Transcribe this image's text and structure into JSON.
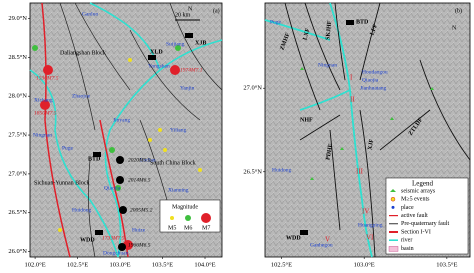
{
  "panel_a": {
    "label": "(a)",
    "scale": "20 km",
    "north": "N",
    "xlim": [
      101.94,
      104.2
    ],
    "ylim": [
      25.93,
      29.2
    ],
    "xticks": [
      {
        "value": 102.0,
        "label": "102.0°E"
      },
      {
        "value": 102.5,
        "label": "102.5°E"
      },
      {
        "value": 103.0,
        "label": "103.0°E"
      },
      {
        "value": 103.5,
        "label": "103.5°E"
      },
      {
        "value": 104.0,
        "label": "104.0°E"
      }
    ],
    "yticks": [
      {
        "value": 26.0,
        "label": "26.0°N"
      },
      {
        "value": 26.5,
        "label": "26.5°N"
      },
      {
        "value": 27.0,
        "label": "27.0°N"
      },
      {
        "value": 27.5,
        "label": "27.5°N"
      },
      {
        "value": 28.0,
        "label": "28.0°N"
      },
      {
        "value": 28.5,
        "label": "28.5°N"
      },
      {
        "value": 29.0,
        "label": "29.0°N"
      }
    ],
    "places": [
      "Ganluo",
      "Zhaojue",
      "Xichang",
      "Puge",
      "Ningnan",
      "Huidong",
      "Qiaojia",
      "Ludian",
      "Jinyang",
      "Yongshan",
      "Suijiang",
      "Yanjin",
      "Yiliang",
      "Xianning",
      "Huize",
      "Dongchuan"
    ],
    "stations": [
      "XJB",
      "XLD",
      "BTD",
      "WDD"
    ],
    "blocks": [
      "Daliangshan Block",
      "South China Block",
      "Sichuan-Yunnan Block"
    ],
    "events": [
      "1536M7.5",
      "1850M7.5",
      "1974M7.1",
      "2020M5.0",
      "2014M6.5",
      "2005M5.2",
      "1733M7.5",
      "1966M6.5"
    ],
    "legend": {
      "title": "Magnitude",
      "items": [
        "M5",
        "M6",
        "M7"
      ]
    }
  },
  "panel_b": {
    "label": "(b)",
    "north": "N",
    "xlim": [
      102.4,
      103.64
    ],
    "ylim": [
      25.99,
      27.51
    ],
    "xticks": [
      {
        "value": 102.5,
        "label": "102.5°E"
      },
      {
        "value": 103.0,
        "label": "103.0°E"
      },
      {
        "value": 103.5,
        "label": "103.5°E"
      }
    ],
    "yticks": [
      {
        "value": 26.5,
        "label": "26.5°N"
      },
      {
        "value": 27.0,
        "label": "27.0°N"
      }
    ],
    "places": [
      "Puge",
      "Ningnan",
      "Houdaogou",
      "Qiaojia",
      "Jianhuatang",
      "Huidong",
      "Huangping",
      "Ganhegou"
    ],
    "faults": [
      "ZMHF",
      "LXF",
      "SKJHF",
      "LFF",
      "NHF",
      "PDHF",
      "XJF",
      "ZTLDF"
    ],
    "stations": [
      "BTD",
      "WDD"
    ],
    "sections": [
      "I",
      "II",
      "III",
      "IV",
      "V",
      "VI"
    ],
    "legend": {
      "title": "Legend",
      "items": [
        "seismic arrays",
        "M≥5 events",
        "place",
        "active fault",
        "Pre-quaternary fault",
        "Section I-VI",
        "river",
        "basin"
      ]
    }
  }
}
